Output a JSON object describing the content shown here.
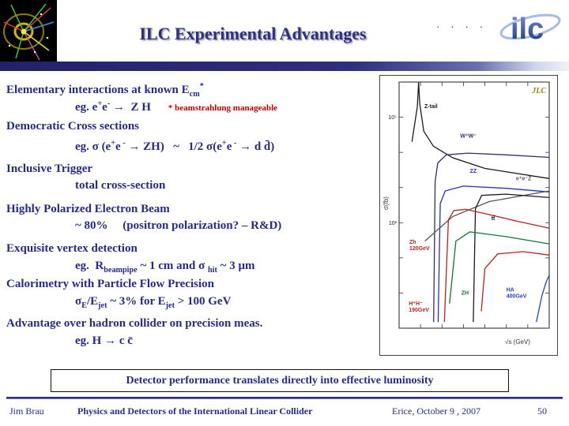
{
  "header": {
    "title": "ILC Experimental Advantages",
    "logo_text": "ilc",
    "dots": "· · · ·"
  },
  "body": {
    "beamstrahlung_note": "* beamstrahlung manageable",
    "lines": [
      {
        "rich": [
          {
            "t": "Elementary interactions at known E"
          },
          {
            "t": "cm",
            "s": "sub"
          },
          {
            "t": "*",
            "s": "sup"
          }
        ]
      },
      {
        "rich": [
          {
            "t": "eg. e"
          },
          {
            "t": "+",
            "s": "sup"
          },
          {
            "t": "e"
          },
          {
            "t": "-",
            "s": "sup"
          },
          {
            "t": " →  Z H"
          }
        ]
      },
      {
        "rich": [
          {
            "t": "Democratic Cross sections"
          }
        ]
      },
      {
        "rich": [
          {
            "t": "eg. σ (e"
          },
          {
            "t": "+",
            "s": "sup"
          },
          {
            "t": "e"
          },
          {
            "t": " -",
            "s": "sup"
          },
          {
            "t": " → ZH)   ~   1/2 σ(e"
          },
          {
            "t": "+",
            "s": "sup"
          },
          {
            "t": "e"
          },
          {
            "t": " -",
            "s": "sup"
          },
          {
            "t": " → d d̄)"
          }
        ]
      },
      {
        "rich": [
          {
            "t": "Inclusive Trigger"
          }
        ]
      },
      {
        "rich": [
          {
            "t": "total cross-section"
          }
        ]
      },
      {
        "rich": [
          {
            "t": "Highly Polarized Electron Beam"
          }
        ]
      },
      {
        "rich": [
          {
            "t": "~ 80%     (positron polarization? – R&D)"
          }
        ]
      },
      {
        "rich": [
          {
            "t": "Exquisite vertex detection"
          }
        ]
      },
      {
        "rich": [
          {
            "t": "eg.  R"
          },
          {
            "t": "beampipe",
            "s": "sub"
          },
          {
            "t": " ~ 1 cm and σ "
          },
          {
            "t": "hit",
            "s": "sub"
          },
          {
            "t": " ~ 3 μm"
          }
        ]
      },
      {
        "rich": [
          {
            "t": "Calorimetry with Particle Flow Precision"
          }
        ]
      },
      {
        "rich": [
          {
            "t": "σ"
          },
          {
            "t": "E",
            "s": "sub"
          },
          {
            "t": "/E"
          },
          {
            "t": "jet",
            "s": "sub"
          },
          {
            "t": " ~ 3% for E"
          },
          {
            "t": "jet",
            "s": "sub"
          },
          {
            "t": " > 100 GeV"
          }
        ]
      },
      {
        "rich": [
          {
            "t": "Advantage over hadron collider on precision meas."
          }
        ]
      },
      {
        "rich": [
          {
            "t": "eg. H → c c̄"
          }
        ]
      }
    ]
  },
  "banner": "Detector performance translates directly into effective luminosity",
  "footer": {
    "author": "Jim Brau",
    "conference": "Physics and Detectors of the International Linear Collider",
    "venue_date": "Erice, October 9 , 2007",
    "page": "50"
  },
  "chart_data": {
    "type": "line",
    "title": "JLC",
    "xlabel": "√s (GeV)",
    "ylabel": "σ(fb)",
    "x_range_gev": [
      0,
      700
    ],
    "y_scale": "log",
    "y_log_range": [
      -1,
      6
    ],
    "y_ticks": [
      {
        "label": "10⁵",
        "value": 100000
      },
      {
        "label": "10²",
        "value": 100
      }
    ],
    "series": [
      {
        "name": "Z-tail",
        "color": "#1a1a1a",
        "points": [
          [
            60,
            20000
          ],
          [
            85,
            200000
          ],
          [
            91,
            2500000
          ],
          [
            96,
            250000
          ],
          [
            115,
            40000
          ],
          [
            160,
            15000
          ],
          [
            250,
            7000
          ],
          [
            400,
            3500
          ],
          [
            700,
            1800
          ]
        ]
      },
      {
        "name": "W+W-",
        "color": "#30306a",
        "points": [
          [
            161,
            0.15
          ],
          [
            168,
            1500
          ],
          [
            180,
            5000
          ],
          [
            220,
            8500
          ],
          [
            320,
            9500
          ],
          [
            500,
            8500
          ],
          [
            700,
            7200
          ]
        ]
      },
      {
        "name": "ZZ",
        "color": "#2233bb",
        "points": [
          [
            182,
            0.15
          ],
          [
            192,
            350
          ],
          [
            215,
            800
          ],
          [
            300,
            1100
          ],
          [
            500,
            950
          ],
          [
            700,
            750
          ]
        ]
      },
      {
        "name": "eeZ",
        "color": "#555555",
        "points": [
          [
            120,
            30
          ],
          [
            250,
            150
          ],
          [
            420,
            400
          ],
          [
            700,
            800
          ]
        ]
      },
      {
        "name": "tt",
        "color": "#1a1a1a",
        "points": [
          [
            346,
            0.15
          ],
          [
            356,
            250
          ],
          [
            385,
            600
          ],
          [
            500,
            650
          ],
          [
            700,
            520
          ]
        ]
      },
      {
        "name": "Zh 120GeV",
        "color": "#bb2222",
        "points": [
          [
            211,
            0.15
          ],
          [
            230,
            120
          ],
          [
            255,
            220
          ],
          [
            310,
            240
          ],
          [
            420,
            170
          ],
          [
            550,
            110
          ],
          [
            700,
            70
          ]
        ]
      },
      {
        "name": "ZH",
        "color": "#117733",
        "points": [
          [
            235,
            0.5
          ],
          [
            265,
            30
          ],
          [
            330,
            55
          ],
          [
            500,
            40
          ],
          [
            700,
            25
          ]
        ]
      },
      {
        "name": "H+H- 190GeV",
        "color": "#bb2222",
        "points": [
          [
            383,
            0.3
          ],
          [
            400,
            5
          ],
          [
            460,
            13
          ],
          [
            580,
            15
          ],
          [
            700,
            12
          ]
        ]
      },
      {
        "name": "HA 400GeV",
        "color": "#2244cc",
        "points": [
          [
            640,
            0.15
          ],
          [
            665,
            0.8
          ],
          [
            685,
            2
          ],
          [
            700,
            3.2
          ]
        ]
      }
    ],
    "labels": [
      {
        "text": "Z-tail",
        "color": "#1a1a1a",
        "x": 118,
        "y": 180000
      },
      {
        "text": "W⁺W⁻",
        "color": "#30306a",
        "x": 285,
        "y": 26000
      },
      {
        "text": "ZZ",
        "color": "#2233bb",
        "x": 330,
        "y": 2600
      },
      {
        "text": "e⁺e⁻Z",
        "color": "#555555",
        "x": 545,
        "y": 1600
      },
      {
        "text": "tt̄",
        "color": "#1a1a1a",
        "x": 430,
        "y": 120
      },
      {
        "text": "Zh\n120GeV",
        "color": "#bb2222",
        "x": 48,
        "y": 25
      },
      {
        "text": "ZH",
        "color": "#117733",
        "x": 290,
        "y": 0.9
      },
      {
        "text": "HA\n400GeV",
        "color": "#2244cc",
        "x": 500,
        "y": 1.1
      },
      {
        "text": "H⁺H⁻\n190GeV",
        "color": "#bb2222",
        "x": 45,
        "y": 0.45
      }
    ]
  }
}
